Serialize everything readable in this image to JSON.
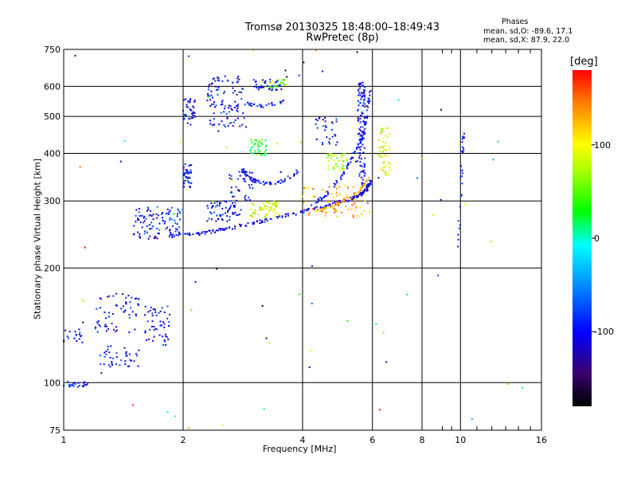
{
  "title_line1": "Tromsø 20130325 18:48:00–18:49:43",
  "title_line2": "RwPretec (8p)",
  "phases": {
    "heading": "Phases",
    "o_mode": "mean, sd,O: -89.6, 17.1",
    "x_mode": "mean, sd,X: 87.9, 22.0"
  },
  "colorbar": {
    "unit": "[deg]",
    "range": [
      -180,
      180
    ],
    "ticks": [
      100,
      0,
      -100
    ],
    "tick_labels": [
      "100",
      "0",
      "-100"
    ]
  },
  "chart_data": {
    "type": "scatter",
    "xlabel": "Frequency [MHz]",
    "ylabel": "Stationary phase Virtual Height [km]",
    "x_scale": "log",
    "y_scale": "log",
    "xlim": [
      1,
      16
    ],
    "ylim": [
      75,
      750
    ],
    "xticks": [
      1,
      2,
      4,
      6,
      8,
      10,
      16
    ],
    "xtick_labels": [
      "1",
      "2",
      "4",
      "6",
      "8",
      "10",
      "16"
    ],
    "yticks": [
      75,
      100,
      200,
      300,
      400,
      500,
      600,
      750
    ],
    "ytick_labels": [
      "75",
      "100",
      "200",
      "300",
      "400",
      "500",
      "600",
      "750"
    ],
    "grid": true,
    "color_by": "phase",
    "clusters": [
      {
        "x": [
          1.0,
          1.15
        ],
        "y": [
          97,
          101
        ],
        "phase": -95,
        "n": 25
      },
      {
        "x": [
          1.0,
          1.12
        ],
        "y": [
          125,
          138
        ],
        "phase": -100,
        "n": 18
      },
      {
        "x": [
          1.2,
          1.55
        ],
        "y": [
          110,
          125
        ],
        "phase": -100,
        "n": 40
      },
      {
        "x": [
          1.2,
          1.55
        ],
        "y": [
          135,
          175
        ],
        "phase": -100,
        "n": 60
      },
      {
        "x": [
          1.6,
          1.85
        ],
        "y": [
          125,
          160
        ],
        "phase": -100,
        "n": 50
      },
      {
        "x": [
          1.5,
          2.0
        ],
        "y": [
          245,
          290
        ],
        "phase": -95,
        "n": 90
      },
      {
        "x": [
          2.0,
          2.1
        ],
        "y": [
          325,
          375
        ],
        "phase": -100,
        "n": 40
      },
      {
        "x": [
          2.0,
          2.15
        ],
        "y": [
          475,
          560
        ],
        "phase": -100,
        "n": 40
      },
      {
        "x": [
          2.3,
          2.85
        ],
        "y": [
          470,
          640
        ],
        "phase": -100,
        "n": 100
      },
      {
        "x": [
          2.3,
          2.8
        ],
        "y": [
          265,
          300
        ],
        "phase": -95,
        "n": 60
      },
      {
        "x": [
          2.6,
          3.0
        ],
        "y": [
          300,
          360
        ],
        "phase": -100,
        "n": 40
      },
      {
        "x": [
          2.95,
          3.25
        ],
        "y": [
          395,
          435
        ],
        "phase": 30,
        "n": 40
      },
      {
        "x": [
          2.95,
          3.5
        ],
        "y": [
          270,
          300
        ],
        "phase": 90,
        "n": 60
      },
      {
        "x": [
          3.0,
          3.6
        ],
        "y": [
          585,
          625
        ],
        "phase": -100,
        "n": 40
      },
      {
        "x": [
          3.3,
          3.7
        ],
        "y": [
          595,
          625
        ],
        "phase": 60,
        "n": 20
      },
      {
        "x": [
          4.3,
          4.9
        ],
        "y": [
          420,
          500
        ],
        "phase": -100,
        "n": 30
      },
      {
        "x": [
          4.6,
          5.2
        ],
        "y": [
          360,
          400
        ],
        "phase": 70,
        "n": 40
      },
      {
        "x": [
          5.5,
          5.75
        ],
        "y": [
          330,
          620
        ],
        "phase": -100,
        "n": 120
      },
      {
        "x": [
          6.2,
          6.65
        ],
        "y": [
          350,
          470
        ],
        "phase": 90,
        "n": 50
      },
      {
        "x": [
          4.0,
          5.9
        ],
        "y": [
          270,
          330
        ],
        "phase": 130,
        "n": 70
      }
    ],
    "traces": [
      {
        "xy": [
          [
            1.55,
            240
          ],
          [
            1.8,
            242
          ],
          [
            2.0,
            244
          ],
          [
            2.3,
            248
          ],
          [
            2.6,
            254
          ],
          [
            3.0,
            262
          ],
          [
            3.4,
            270
          ],
          [
            3.8,
            278
          ],
          [
            4.2,
            285
          ],
          [
            4.7,
            293
          ],
          [
            5.2,
            302
          ],
          [
            5.6,
            312
          ],
          [
            5.8,
            322
          ],
          [
            5.95,
            338
          ]
        ],
        "phase": -105,
        "n": 200
      },
      {
        "xy": [
          [
            2.8,
            365
          ],
          [
            2.95,
            345
          ],
          [
            3.1,
            335
          ],
          [
            3.4,
            332
          ],
          [
            3.7,
            345
          ],
          [
            3.9,
            362
          ]
        ],
        "phase": -100,
        "n": 60
      },
      {
        "xy": [
          [
            2.85,
            540
          ],
          [
            3.2,
            532
          ],
          [
            3.6,
            548
          ]
        ],
        "phase": -100,
        "n": 30
      },
      {
        "xy": [
          [
            4.4,
            282
          ],
          [
            4.8,
            292
          ],
          [
            5.2,
            305
          ],
          [
            5.6,
            320
          ],
          [
            5.9,
            345
          ]
        ],
        "phase": 130,
        "n": 60
      },
      {
        "xy": [
          [
            4.2,
            292
          ],
          [
            4.6,
            312
          ],
          [
            5.0,
            345
          ],
          [
            5.3,
            385
          ],
          [
            5.6,
            430
          ],
          [
            5.8,
            500
          ],
          [
            5.9,
            580
          ]
        ],
        "phase": -100,
        "n": 80
      },
      {
        "xy": [
          [
            9.8,
            215
          ],
          [
            10.0,
            300
          ],
          [
            10.1,
            390
          ],
          [
            10.2,
            450
          ]
        ],
        "phase": -90,
        "n": 30
      }
    ]
  }
}
